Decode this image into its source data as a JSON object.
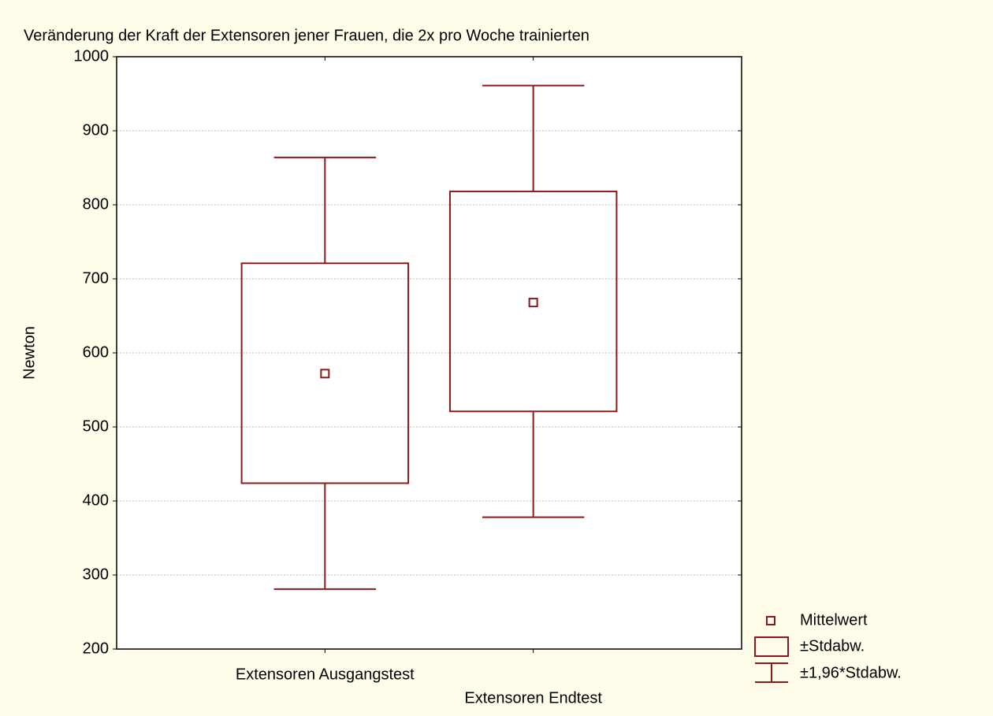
{
  "chart_data": {
    "type": "box",
    "title": "Veränderung der Kraft der Extensoren jener Frauen, die 2x pro Woche trainierten",
    "y_label": "Newton",
    "categories": [
      "Extensoren Ausgangstest",
      "Extensoren Endtest"
    ],
    "color": "#8b1a1a",
    "mean": [
      572,
      668
    ],
    "box_low": [
      424,
      521
    ],
    "box_high": [
      721,
      818
    ],
    "whisker_low": [
      281,
      378
    ],
    "whisker_high": [
      864,
      961
    ],
    "ylim": [
      200,
      1000
    ],
    "yticks": [
      200,
      300,
      400,
      500,
      600,
      700,
      800,
      900,
      1000
    ],
    "grid": true,
    "legend": {
      "position": "bottom-right",
      "entries": [
        "Mittelwert",
        "±Stdabw.",
        "±1,96*Stdabw."
      ]
    }
  }
}
